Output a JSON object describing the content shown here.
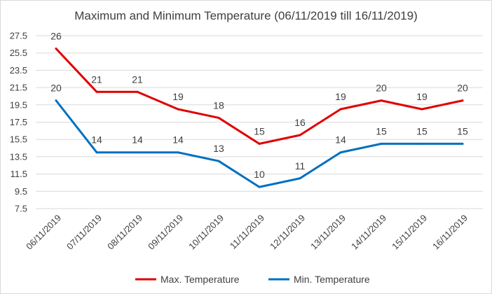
{
  "chart_data": {
    "type": "line",
    "title": "Maximum and Minimum Temperature (06/11/2019 till 16/11/2019)",
    "xlabel": "",
    "ylabel": "",
    "categories": [
      "06/11/2019",
      "07/11/2019",
      "08/11/2019",
      "09/11/2019",
      "10/11/2019",
      "11/11/2019",
      "12/11/2019",
      "13/11/2019",
      "14/11/2019",
      "15/11/2019",
      "16/11/2019"
    ],
    "ylim": [
      7.5,
      27.5
    ],
    "yticks": [
      "7.5",
      "9.5",
      "11.5",
      "13.5",
      "15.5",
      "17.5",
      "19.5",
      "21.5",
      "23.5",
      "25.5",
      "27.5"
    ],
    "grid": true,
    "legend_position": "bottom",
    "series": [
      {
        "name": "Max. Temperature",
        "color": "#e00000",
        "values": [
          26,
          21,
          21,
          19,
          18,
          15,
          16,
          19,
          20,
          19,
          20
        ]
      },
      {
        "name": "Min. Temperature",
        "color": "#0070c0",
        "values": [
          20,
          14,
          14,
          14,
          13,
          10,
          11,
          14,
          15,
          15,
          15
        ]
      }
    ]
  }
}
